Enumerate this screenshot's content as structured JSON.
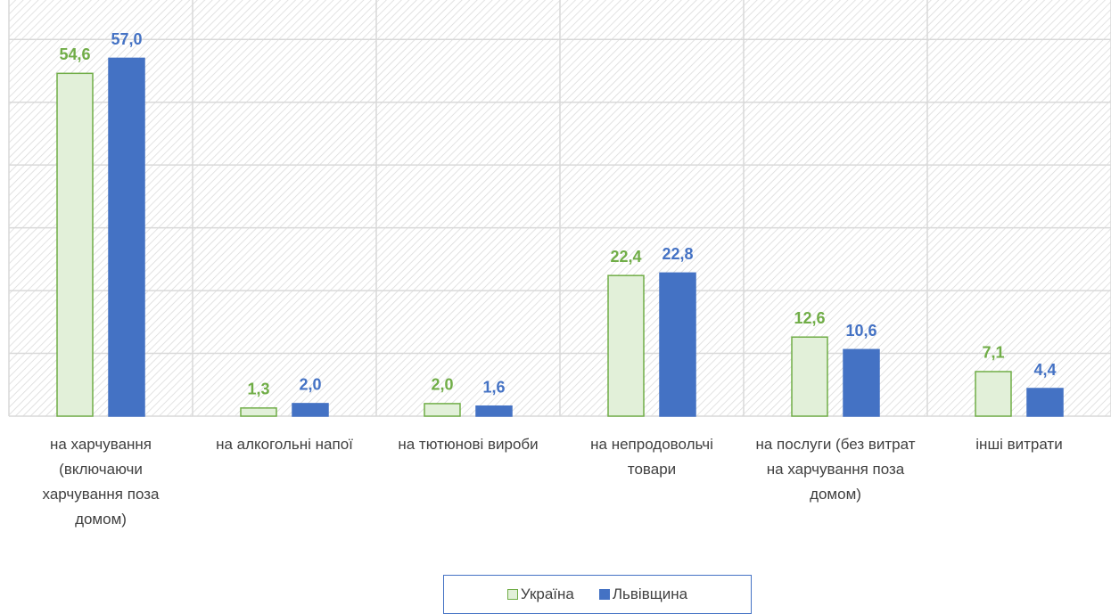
{
  "chart_data": {
    "type": "bar",
    "categories": [
      "на харчування (включаючи харчування поза домом)",
      "на алкогольні напої",
      "на тютюнові вироби",
      "на непродовольчі товари",
      "на послуги (без витрат на харчування поза домом)",
      "інші витрати"
    ],
    "series": [
      {
        "name": "Україна",
        "color": "#70ad47",
        "fill": "#e2f0d9",
        "values": [
          54.6,
          1.3,
          2.0,
          22.4,
          12.6,
          7.1
        ],
        "value_labels": [
          "54,6",
          "1,3",
          "2,0",
          "22,4",
          "12,6",
          "7,1"
        ]
      },
      {
        "name": "Львівщина",
        "color": "#4472c4",
        "fill": "#4472c4",
        "values": [
          57.0,
          2.0,
          1.6,
          22.8,
          10.6,
          4.4
        ],
        "value_labels": [
          "57,0",
          "2,0",
          "1,6",
          "22,8",
          "10,6",
          "4,4"
        ]
      }
    ],
    "ylim": [
      0,
      66
    ],
    "yticks": [
      0,
      10,
      20,
      30,
      40,
      50,
      60
    ],
    "grid": true,
    "legend": "bottom"
  }
}
